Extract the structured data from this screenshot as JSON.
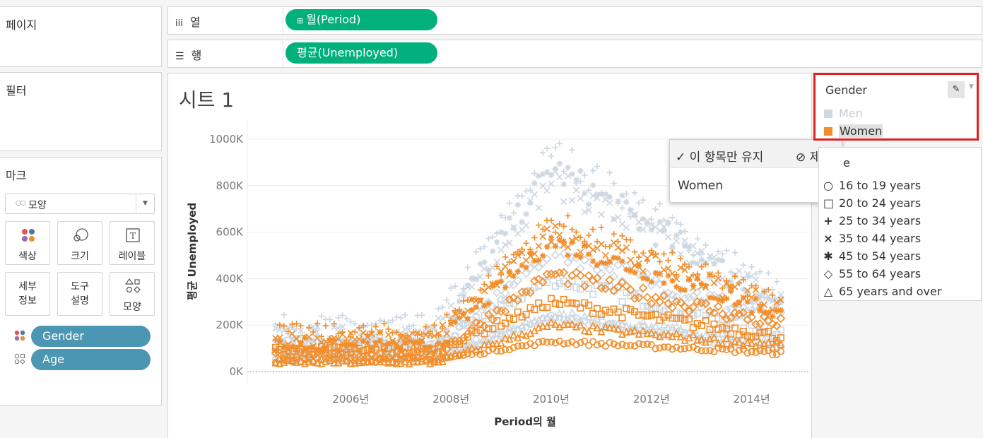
{
  "left": {
    "pages_title": "페이지",
    "filters_title": "필터",
    "marks_title": "마크",
    "mark_type": "모양",
    "cards": [
      {
        "label": "색상"
      },
      {
        "label": "크기"
      },
      {
        "label": "레이블"
      },
      {
        "label": "세부\n정보"
      },
      {
        "label": "도구\n설명"
      },
      {
        "label": "모양"
      }
    ],
    "pills": [
      {
        "label": "Gender"
      },
      {
        "label": "Age"
      }
    ]
  },
  "shelves": {
    "columns_label": "열",
    "columns_pill": "월(Period)",
    "rows_label": "행",
    "rows_pill": "평균(Unemployed)"
  },
  "sheet": {
    "title": "시트 1",
    "xlabel": "Period의 월",
    "ylabel": "평균 Unemployed"
  },
  "chart_data": {
    "type": "scatter",
    "ylabel": "평균 Unemployed",
    "xlabel": "Period의 월",
    "y_ticks": [
      "0K",
      "200K",
      "400K",
      "600K",
      "800K",
      "1000K"
    ],
    "x_ticks": [
      "2006년",
      "2008년",
      "2010년",
      "2012년",
      "2014년"
    ],
    "ylim": [
      0,
      1000000
    ],
    "xlim": [
      "2005-01",
      "2015-02"
    ],
    "grid": true,
    "series": [
      {
        "color": "#f28e2b",
        "highlighted": true,
        "shapes": [
          "circle",
          "square",
          "plus",
          "cross",
          "asterisk",
          "diamond",
          "triangle"
        ],
        "peaks": [
          {
            "shape": "circle",
            "start": 50000,
            "peak": 130000,
            "end": 80000
          },
          {
            "shape": "square",
            "start": 90000,
            "peak": 300000,
            "end": 150000
          },
          {
            "shape": "plus",
            "start": 170000,
            "peak": 650000,
            "end": 300000
          },
          {
            "shape": "cross",
            "start": 140000,
            "peak": 600000,
            "end": 280000
          },
          {
            "shape": "asterisk",
            "start": 110000,
            "peak": 560000,
            "end": 250000
          },
          {
            "shape": "diamond",
            "start": 70000,
            "peak": 420000,
            "end": 200000
          },
          {
            "shape": "triangle",
            "start": 40000,
            "peak": 200000,
            "end": 110000
          }
        ]
      },
      {
        "color": "#cdd8e2",
        "highlighted": false,
        "peaks": [
          {
            "shape": "circle",
            "start": 70000,
            "peak": 230000,
            "end": 100000
          },
          {
            "shape": "square",
            "start": 110000,
            "peak": 400000,
            "end": 170000
          },
          {
            "shape": "plus",
            "start": 200000,
            "peak": 950000,
            "end": 330000
          },
          {
            "shape": "cross",
            "start": 160000,
            "peak": 820000,
            "end": 300000
          },
          {
            "shape": "asterisk",
            "start": 130000,
            "peak": 880000,
            "end": 280000
          },
          {
            "shape": "diamond",
            "start": 80000,
            "peak": 520000,
            "end": 220000
          },
          {
            "shape": "triangle",
            "start": 50000,
            "peak": 250000,
            "end": 120000
          }
        ]
      }
    ]
  },
  "gender_legend": {
    "title": "Gender",
    "items": [
      {
        "label": "Men",
        "color": "#cdd8e2",
        "faded": true
      },
      {
        "label": "Women",
        "color": "#f28e2b",
        "selected": true
      }
    ]
  },
  "age_legend": {
    "title_fragment": "e",
    "items": [
      {
        "label": "16 to 19 years",
        "symbol": "○"
      },
      {
        "label": "20 to 24 years",
        "symbol": "□"
      },
      {
        "label": "25 to 34 years",
        "symbol": "+"
      },
      {
        "label": "35 to 44 years",
        "symbol": "×"
      },
      {
        "label": "45 to 54 years",
        "symbol": "✱"
      },
      {
        "label": "55 to 64 years",
        "symbol": "◇"
      },
      {
        "label": "65 years and over",
        "symbol": "△"
      }
    ]
  },
  "tooltip": {
    "keep_only": "✓ 이 항목만 유지",
    "exclude": "⊘ 제외",
    "value": "Women"
  }
}
